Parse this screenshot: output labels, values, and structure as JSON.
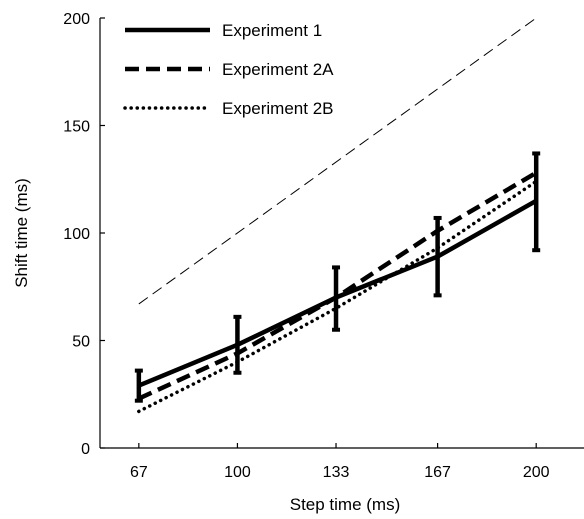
{
  "chart_data": {
    "type": "line",
    "title": "",
    "xlabel": "Step time (ms)",
    "ylabel": "Shift time (ms)",
    "x": [
      67,
      100,
      133,
      167,
      200
    ],
    "x_tick_labels": [
      "67",
      "100",
      "133",
      "167",
      "200"
    ],
    "xlim": [
      54,
      216
    ],
    "ylim": [
      0,
      200
    ],
    "y_ticks": [
      0,
      50,
      100,
      150,
      200
    ],
    "y_tick_labels": [
      "0",
      "50",
      "100",
      "150",
      "200"
    ],
    "grid": false,
    "legend_position": "top-left",
    "series": [
      {
        "name": "Experiment 1",
        "style": "solid",
        "color": "#000000",
        "values": [
          29,
          48,
          70,
          89,
          115
        ],
        "error_low": [
          22,
          35,
          55,
          71,
          92
        ],
        "error_high": [
          36,
          61,
          84,
          107,
          137
        ]
      },
      {
        "name": "Experiment 2A",
        "style": "dashed",
        "color": "#000000",
        "values": [
          23,
          44,
          70,
          101,
          128
        ]
      },
      {
        "name": "Experiment 2B",
        "style": "dotted",
        "color": "#000000",
        "values": [
          17,
          40,
          65,
          93,
          124
        ]
      }
    ],
    "reference_line": {
      "style": "thin-dashed",
      "x": [
        67,
        200
      ],
      "y": [
        67,
        200
      ]
    }
  }
}
